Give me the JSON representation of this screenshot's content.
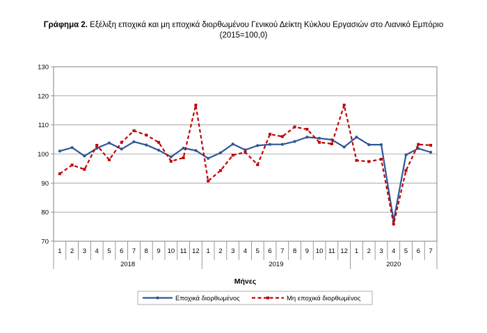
{
  "chart_data": {
    "type": "line",
    "title_bold": "Γράφημα 2.",
    "title_rest": " Εξέλιξη εποχικά και μη εποχικά διορθωμένου Γενικού Δείκτη Κύκλου Εργασιών στο Λιανικό Εμπόριο",
    "subtitle": "(2015=100,0)",
    "xlabel": "Μήνες",
    "ylim": [
      70,
      130
    ],
    "yticks": [
      "70",
      "80",
      "90",
      "100",
      "110",
      "120",
      "130"
    ],
    "grid": true,
    "legend_position": "bottom",
    "month_labels": [
      "1",
      "2",
      "3",
      "4",
      "5",
      "6",
      "7",
      "8",
      "9",
      "10",
      "11",
      "12",
      "1",
      "2",
      "3",
      "4",
      "5",
      "6",
      "7",
      "8",
      "9",
      "10",
      "11",
      "12",
      "1",
      "2",
      "3",
      "4",
      "5",
      "6",
      "7"
    ],
    "year_groups": [
      {
        "label": "2018",
        "months": 12
      },
      {
        "label": "2019",
        "months": 12
      },
      {
        "label": "2020",
        "months": 7
      }
    ],
    "series": [
      {
        "name": "Εποχικά διορθωμένος",
        "color": "#2f5597",
        "style": "solid",
        "values": [
          101.0,
          102.2,
          99.3,
          102.0,
          103.8,
          101.7,
          104.2,
          103.1,
          101.3,
          99.0,
          102.0,
          101.2,
          98.5,
          100.4,
          103.4,
          101.4,
          102.9,
          103.3,
          103.3,
          104.3,
          105.8,
          105.4,
          104.9,
          102.4,
          105.8,
          103.2,
          103.2,
          77.0,
          99.7,
          101.9,
          100.6
        ]
      },
      {
        "name": "Μη εποχικά διορθωμένος",
        "color": "#c00000",
        "style": "dashed",
        "values": [
          93.2,
          96.2,
          94.7,
          103.0,
          98.0,
          104.0,
          108.0,
          106.5,
          104.0,
          97.5,
          98.7,
          116.8,
          90.7,
          94.3,
          99.6,
          100.6,
          96.3,
          106.8,
          106.0,
          109.3,
          108.5,
          104.0,
          103.5,
          116.8,
          97.8,
          97.4,
          98.2,
          75.9,
          94.3,
          103.3,
          103.0
        ]
      }
    ]
  }
}
